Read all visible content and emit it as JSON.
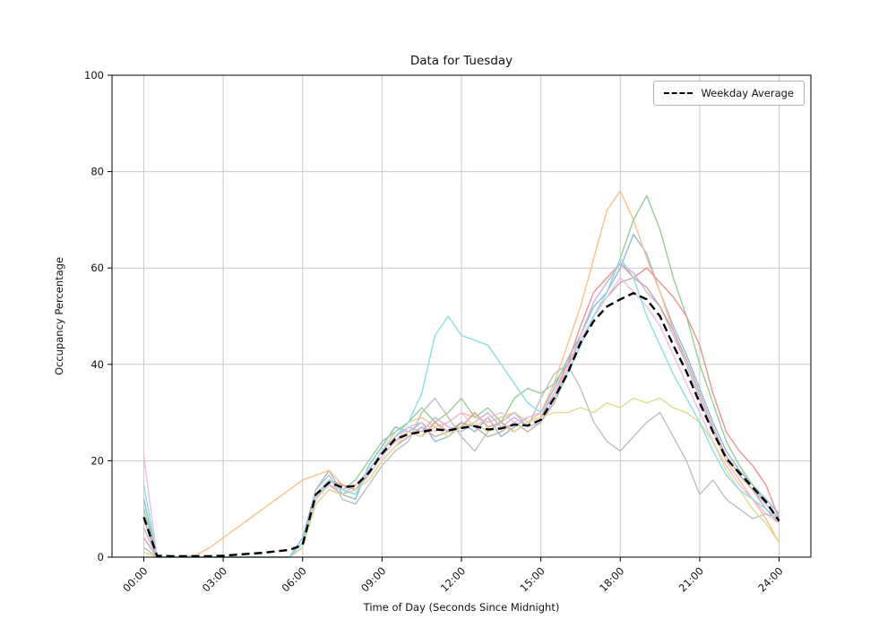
{
  "chart_data": {
    "type": "line",
    "title": "Data for Tuesday",
    "xlabel": "Time of Day (Seconds Since Midnight)",
    "ylabel": "Occupancy Percentage",
    "xlim": [
      0,
      86400
    ],
    "ylim": [
      0,
      100
    ],
    "grid": true,
    "legend_position": "upper right",
    "x_ticks": {
      "values": [
        0,
        10800,
        21600,
        32400,
        43200,
        54000,
        64800,
        75600,
        86400
      ],
      "labels": [
        "00:00",
        "03:00",
        "06:00",
        "09:00",
        "12:00",
        "15:00",
        "18:00",
        "21:00",
        "24:00"
      ]
    },
    "y_ticks": [
      0,
      20,
      40,
      60,
      80,
      100
    ],
    "x": [
      0,
      1800,
      3600,
      5400,
      7200,
      9000,
      10800,
      12600,
      14400,
      16200,
      18000,
      19800,
      21600,
      23400,
      25200,
      27000,
      28800,
      30600,
      32400,
      34200,
      36000,
      37800,
      39600,
      41400,
      43200,
      45000,
      46800,
      48600,
      50400,
      52200,
      54000,
      55800,
      57600,
      59400,
      61200,
      63000,
      64800,
      66600,
      68400,
      70200,
      72000,
      73800,
      75600,
      77400,
      79200,
      81000,
      82800,
      84600,
      86400
    ],
    "series": [
      {
        "color": "#8fbbd9",
        "values": [
          12,
          0,
          0,
          0,
          0,
          0,
          0,
          0,
          0,
          0,
          0,
          0,
          4,
          14,
          18,
          13,
          12,
          19,
          23,
          27,
          26,
          28,
          24,
          25,
          28,
          26,
          29,
          25,
          27,
          29,
          30,
          35,
          41,
          46,
          52,
          55,
          60,
          67,
          63,
          55,
          48,
          42,
          35,
          28,
          22,
          18,
          15,
          12,
          9
        ]
      },
      {
        "color": "#ffbf87",
        "values": [
          1,
          0,
          0,
          0,
          0.5,
          2,
          4,
          6,
          8,
          10,
          12,
          14,
          16,
          17,
          18,
          15,
          14,
          18,
          22,
          26,
          28,
          29,
          27,
          28,
          30,
          29,
          28,
          29,
          30,
          28,
          30,
          36,
          44,
          52,
          62,
          72,
          76,
          70,
          62,
          55,
          47,
          40,
          33,
          26,
          20,
          16,
          12,
          8,
          3
        ]
      },
      {
        "color": "#95cf95",
        "values": [
          10,
          0,
          0,
          0,
          0,
          0,
          0,
          0,
          0,
          0,
          0,
          0,
          3,
          12,
          16,
          14,
          16,
          20,
          24,
          26,
          28,
          31,
          28,
          30,
          33,
          29,
          31,
          28,
          33,
          35,
          34,
          36,
          40,
          45,
          50,
          55,
          62,
          70,
          75,
          68,
          58,
          50,
          40,
          32,
          24,
          19,
          15,
          11,
          8
        ]
      },
      {
        "color": "#ea9393",
        "values": [
          8,
          0,
          0,
          0,
          0,
          0,
          0,
          0,
          0,
          0,
          0,
          0,
          3,
          13,
          16,
          15,
          14,
          17,
          21,
          24,
          26,
          25,
          28,
          26,
          27,
          30,
          27,
          28,
          26,
          28,
          29,
          34,
          40,
          48,
          55,
          58,
          61,
          58,
          60,
          57,
          54,
          50,
          44,
          34,
          26,
          22,
          19,
          15,
          8
        ]
      },
      {
        "color": "#c9b3de",
        "values": [
          6,
          0,
          0,
          0,
          0,
          0,
          0,
          0,
          0,
          0,
          0,
          0,
          2,
          11,
          14,
          13,
          15,
          18,
          22,
          25,
          27,
          26,
          29,
          27,
          26,
          28,
          30,
          27,
          29,
          27,
          28,
          33,
          39,
          46,
          53,
          57,
          61,
          59,
          55,
          52,
          46,
          40,
          33,
          26,
          21,
          17,
          14,
          11,
          8
        ]
      },
      {
        "color": "#c5aaa5",
        "values": [
          4,
          0,
          0,
          0,
          0,
          0,
          0,
          0,
          0,
          0,
          0,
          0,
          2,
          12,
          15,
          13,
          14,
          16,
          20,
          23,
          25,
          27,
          25,
          26,
          28,
          27,
          25,
          26,
          28,
          26,
          28,
          32,
          38,
          44,
          50,
          54,
          57,
          58,
          56,
          52,
          47,
          41,
          34,
          27,
          21,
          17,
          14,
          10,
          7
        ]
      },
      {
        "color": "#f1bbe0",
        "values": [
          21,
          0,
          0,
          0,
          0,
          0,
          0,
          0,
          0,
          0,
          0,
          0,
          2,
          12,
          15,
          14,
          15,
          17,
          21,
          24,
          27,
          28,
          26,
          28,
          30,
          27,
          29,
          30,
          28,
          29,
          30,
          34,
          39,
          45,
          50,
          54,
          58,
          55,
          52,
          48,
          42,
          36,
          30,
          24,
          19,
          15,
          12,
          9,
          7
        ]
      },
      {
        "color": "#bfbfbf",
        "values": [
          2,
          0,
          0,
          0,
          0,
          0,
          0,
          0,
          0,
          0,
          0,
          0,
          3,
          14,
          17,
          12,
          11,
          15,
          19,
          22,
          24,
          30,
          33,
          29,
          25,
          22,
          26,
          28,
          30,
          27,
          33,
          38,
          40,
          35,
          28,
          24,
          22,
          25,
          28,
          30,
          25,
          20,
          13,
          16,
          12,
          10,
          8,
          9,
          8
        ]
      },
      {
        "color": "#dddd90",
        "values": [
          1,
          0,
          0,
          0,
          0,
          0,
          0,
          0,
          0,
          0,
          0,
          0,
          2,
          11,
          14,
          13,
          14,
          16,
          20,
          23,
          26,
          25,
          27,
          25,
          27,
          28,
          26,
          27,
          26,
          28,
          29,
          30,
          30,
          31,
          30,
          32,
          31,
          33,
          32,
          33,
          31,
          30,
          28,
          24,
          18,
          14,
          10,
          7,
          3
        ]
      },
      {
        "color": "#8bdee7",
        "values": [
          15,
          0,
          0,
          0,
          0,
          0,
          0,
          0,
          0,
          0,
          0,
          0,
          3,
          13,
          16,
          14,
          13,
          18,
          22,
          25,
          28,
          34,
          46,
          50,
          46,
          45,
          44,
          40,
          36,
          32,
          30,
          33,
          38,
          44,
          50,
          55,
          62,
          58,
          50,
          44,
          38,
          33,
          28,
          22,
          17,
          14,
          12,
          10,
          8
        ]
      }
    ],
    "average": {
      "name": "Weekday Average",
      "color": "#000000",
      "dashed": true,
      "values": [
        8.3,
        0.3,
        0.2,
        0.2,
        0.2,
        0.2,
        0.3,
        0.5,
        0.7,
        0.9,
        1.2,
        1.5,
        2.5,
        13,
        15.5,
        14.5,
        14.8,
        17.5,
        21.5,
        24.5,
        25.5,
        26,
        26.5,
        26.3,
        26.8,
        27.2,
        26.5,
        26.7,
        27.5,
        27.3,
        28.5,
        33,
        38,
        44.5,
        49,
        52,
        53.5,
        54.8,
        53.5,
        50,
        44,
        38.5,
        32,
        26,
        20.5,
        17.5,
        14.5,
        11.5,
        7.5
      ]
    }
  }
}
